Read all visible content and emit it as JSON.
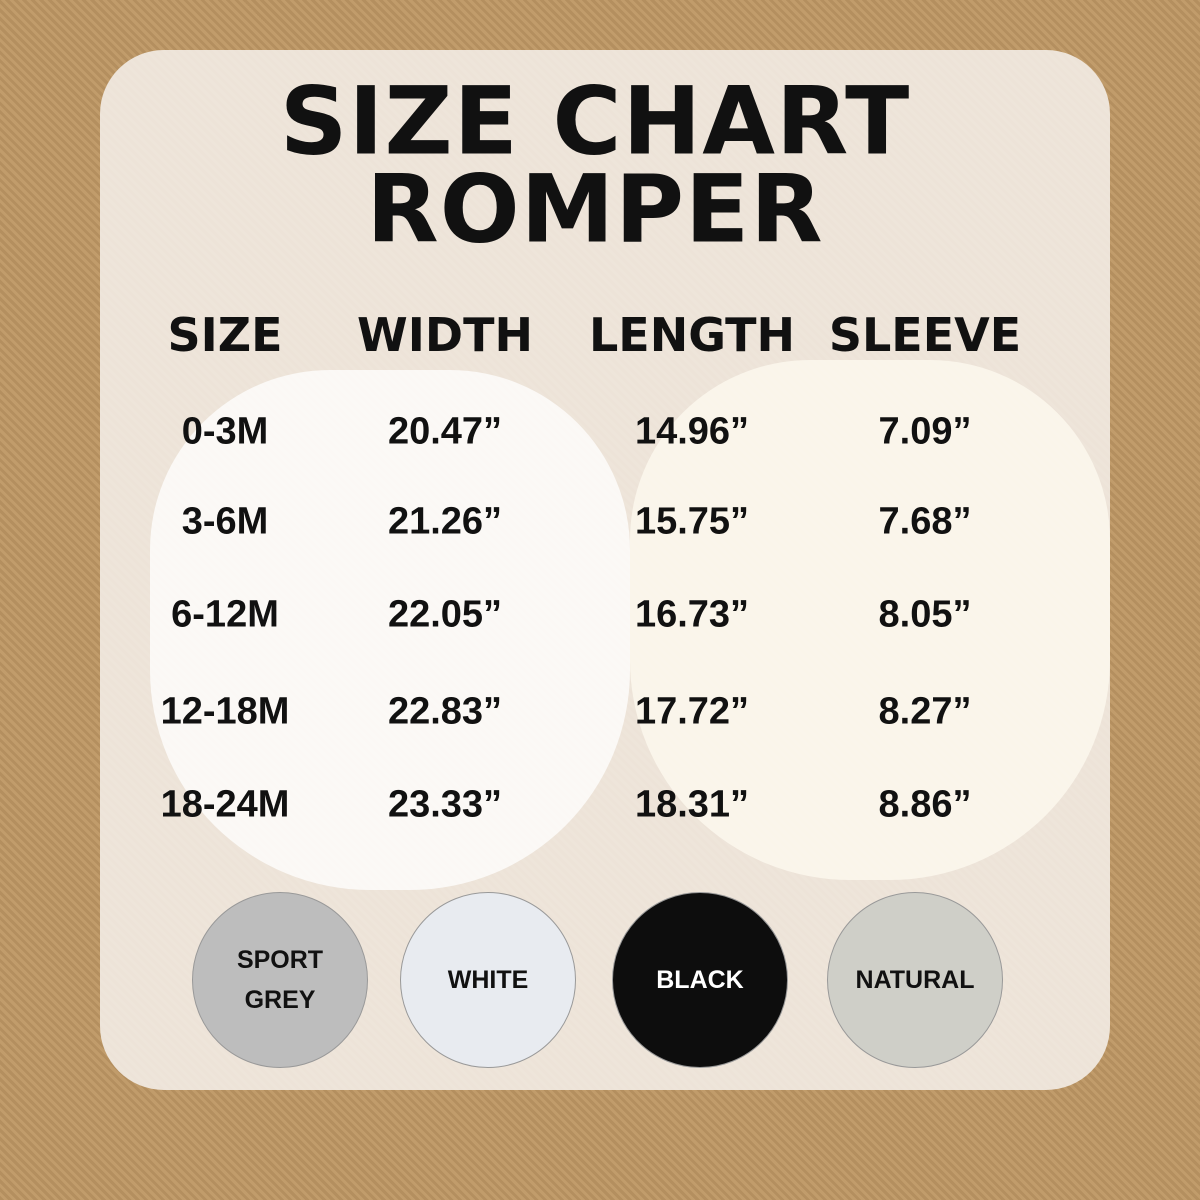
{
  "header": {
    "title": "SIZE CHART",
    "subtitle": "ROMPER"
  },
  "table": {
    "columns": [
      "SIZE",
      "WIDTH",
      "LENGTH",
      "SLEEVE"
    ],
    "rows": [
      [
        "0-3M",
        "20.47”",
        "14.96”",
        "7.09”"
      ],
      [
        "3-6M",
        "21.26”",
        "15.75”",
        "7.68”"
      ],
      [
        "6-12M",
        "22.05”",
        "16.73”",
        "8.05”"
      ],
      [
        "12-18M",
        "22.83”",
        "17.72”",
        "8.27”"
      ],
      [
        "18-24M",
        "23.33”",
        "18.31”",
        "8.86”"
      ]
    ]
  },
  "colors": [
    "SPORT GREY",
    "WHITE",
    "BLACK",
    "NATURAL"
  ]
}
